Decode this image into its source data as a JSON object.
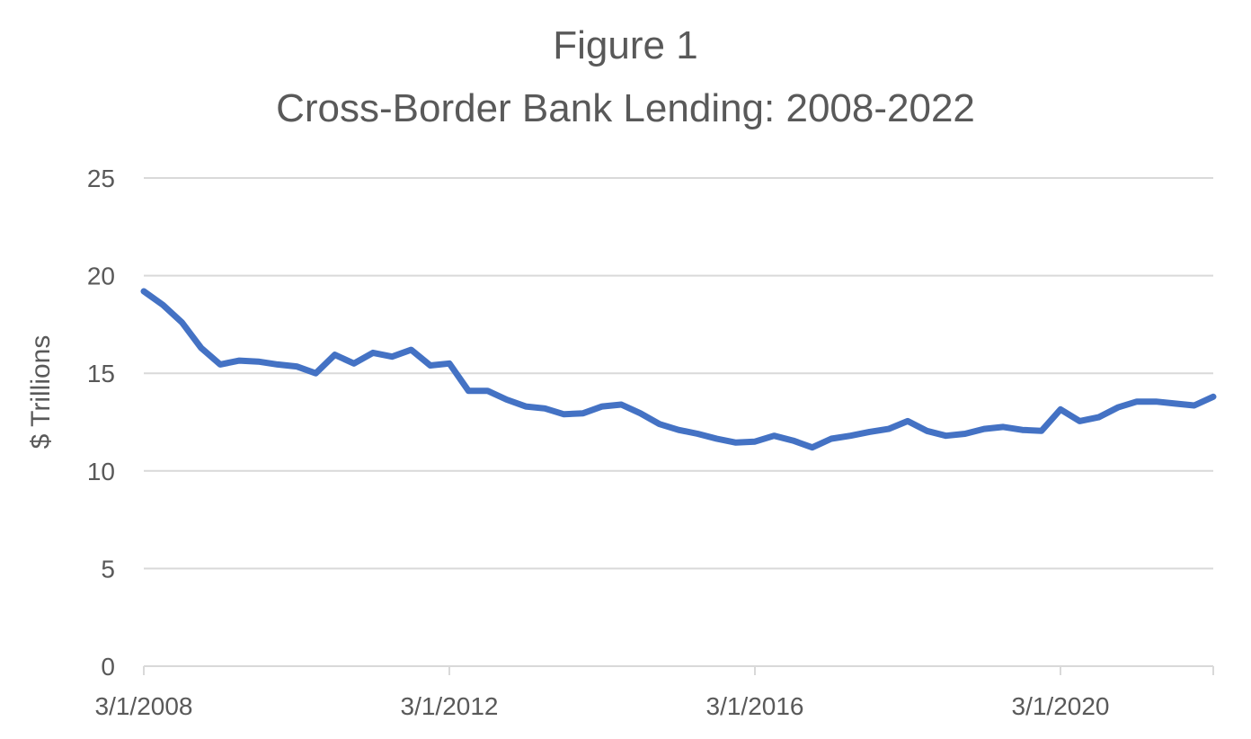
{
  "chart_data": {
    "type": "line",
    "title": "Figure 1",
    "subtitle": "Cross-Border Bank Lending: 2008-2022",
    "xlabel": "",
    "ylabel": "$ Trillions",
    "ylim": [
      0,
      25
    ],
    "yticks": [
      0,
      5,
      10,
      15,
      20,
      25
    ],
    "grid": true,
    "line_color": "#4472C4",
    "x_tick_labels": [
      {
        "label": "3/1/2008",
        "index": 0
      },
      {
        "label": "3/1/2012",
        "index": 16
      },
      {
        "label": "3/1/2016",
        "index": 32
      },
      {
        "label": "3/1/2020",
        "index": 48
      }
    ],
    "x_frequency": "quarterly",
    "x_start": "3/1/2008",
    "series": [
      {
        "values": [
          19.2,
          18.5,
          17.6,
          16.3,
          15.45,
          15.65,
          15.6,
          15.45,
          15.35,
          15.0,
          15.95,
          15.5,
          16.05,
          15.85,
          16.2,
          15.4,
          15.5,
          14.1,
          14.1,
          13.65,
          13.3,
          13.2,
          12.9,
          12.95,
          13.3,
          13.4,
          12.95,
          12.4,
          12.1,
          11.9,
          11.65,
          11.45,
          11.5,
          11.8,
          11.55,
          11.2,
          11.65,
          11.8,
          12.0,
          12.15,
          12.55,
          12.05,
          11.8,
          11.9,
          12.15,
          12.25,
          12.1,
          12.05,
          13.15,
          12.55,
          12.75,
          13.25,
          13.55,
          13.55,
          13.45,
          13.35,
          13.8
        ]
      }
    ]
  }
}
